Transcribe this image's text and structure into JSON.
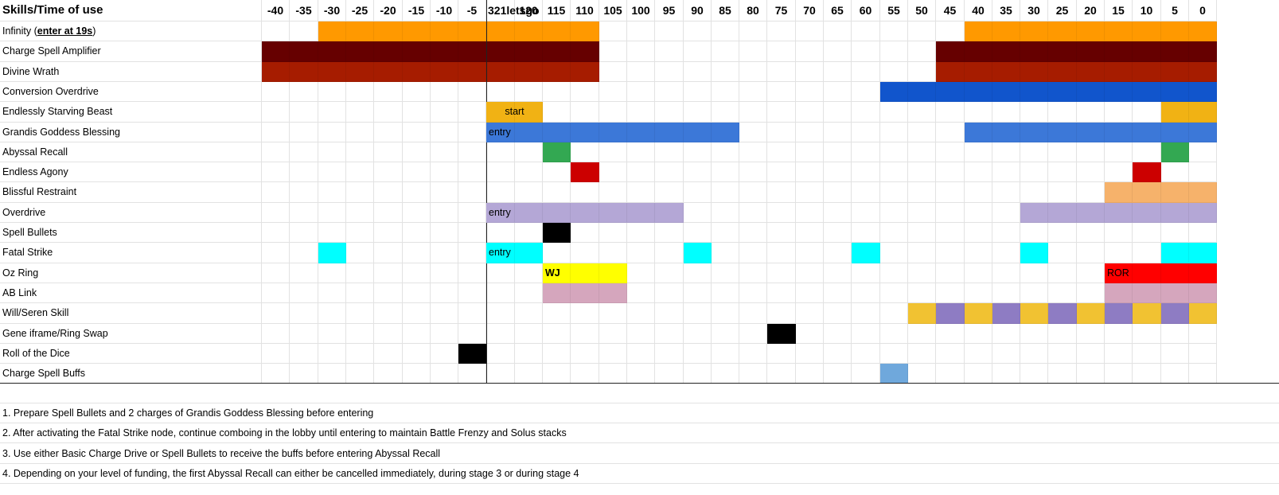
{
  "header": {
    "corner": "Skills/Time of use",
    "times": [
      "-40",
      "-35",
      "-30",
      "-25",
      "-20",
      "-15",
      "-10",
      "-5",
      "321letsgo",
      "120",
      "115",
      "110",
      "105",
      "100",
      "95",
      "90",
      "85",
      "80",
      "75",
      "70",
      "65",
      "60",
      "55",
      "50",
      "45",
      "40",
      "35",
      "30",
      "25",
      "20",
      "15",
      "10",
      "5",
      "0"
    ]
  },
  "colors": {
    "orange": "#ff9900",
    "darkred": "#660000",
    "brickred": "#a61c00",
    "blue": "#1155cc",
    "gold": "#f1b214",
    "cornflower": "#3c78d8",
    "green": "#33a852",
    "red": "#cc0000",
    "peach": "#f6b26b",
    "lavender": "#b4a7d6",
    "black": "#000000",
    "cyan": "#00ffff",
    "yellow": "#ffff00",
    "brightred": "#ff0000",
    "pink": "#d5a6bd",
    "mustard": "#f1c232",
    "purple": "#8e7cc3",
    "lightblue": "#6fa8dc"
  },
  "rows": [
    {
      "label": "Infinity (",
      "label_em": "enter at 19s",
      "label_tail": ")",
      "fills": [
        {
          "from": 2,
          "to": 11,
          "color": "orange"
        },
        {
          "from": 25,
          "to": 33,
          "color": "orange"
        }
      ]
    },
    {
      "label": "Charge Spell Amplifier",
      "fills": [
        {
          "from": 0,
          "to": 11,
          "color": "darkred"
        },
        {
          "from": 24,
          "to": 33,
          "color": "darkred"
        }
      ]
    },
    {
      "label": "Divine Wrath",
      "fills": [
        {
          "from": 0,
          "to": 11,
          "color": "brickred"
        },
        {
          "from": 24,
          "to": 33,
          "color": "brickred"
        }
      ]
    },
    {
      "label": "Conversion Overdrive",
      "fills": [
        {
          "from": 22,
          "to": 33,
          "color": "blue"
        }
      ]
    },
    {
      "label": "Endlessly Starving Beast",
      "fills": [
        {
          "from": 8,
          "to": 9,
          "color": "gold",
          "text": "start",
          "align": "center"
        },
        {
          "from": 32,
          "to": 33,
          "color": "gold"
        }
      ]
    },
    {
      "label": "Grandis Goddess Blessing",
      "fills": [
        {
          "from": 8,
          "to": 16,
          "color": "cornflower",
          "text": "entry"
        },
        {
          "from": 25,
          "to": 33,
          "color": "cornflower"
        }
      ]
    },
    {
      "label": "Abyssal Recall",
      "fills": [
        {
          "from": 10,
          "to": 10,
          "color": "green"
        },
        {
          "from": 32,
          "to": 32,
          "color": "green"
        }
      ]
    },
    {
      "label": "Endless Agony",
      "fills": [
        {
          "from": 11,
          "to": 11,
          "color": "red"
        },
        {
          "from": 31,
          "to": 31,
          "color": "red"
        }
      ]
    },
    {
      "label": "Blissful Restraint",
      "fills": [
        {
          "from": 30,
          "to": 33,
          "color": "peach"
        }
      ]
    },
    {
      "label": "Overdrive",
      "fills": [
        {
          "from": 8,
          "to": 14,
          "color": "lavender",
          "text": "entry"
        },
        {
          "from": 27,
          "to": 33,
          "color": "lavender"
        }
      ]
    },
    {
      "label": "Spell Bullets",
      "fills": [
        {
          "from": 10,
          "to": 10,
          "color": "black"
        }
      ]
    },
    {
      "label": "Fatal Strike",
      "fills": [
        {
          "from": 2,
          "to": 2,
          "color": "cyan"
        },
        {
          "from": 8,
          "to": 9,
          "color": "cyan",
          "text": "entry"
        },
        {
          "from": 15,
          "to": 15,
          "color": "cyan"
        },
        {
          "from": 21,
          "to": 21,
          "color": "cyan"
        },
        {
          "from": 27,
          "to": 27,
          "color": "cyan"
        },
        {
          "from": 32,
          "to": 33,
          "color": "cyan"
        }
      ]
    },
    {
      "label": "Oz Ring",
      "fills": [
        {
          "from": 10,
          "to": 12,
          "color": "yellow",
          "text": "WJ",
          "bold": true
        },
        {
          "from": 30,
          "to": 33,
          "color": "brightred",
          "text": "ROR"
        }
      ]
    },
    {
      "label": "AB Link",
      "fills": [
        {
          "from": 10,
          "to": 12,
          "color": "pink"
        },
        {
          "from": 30,
          "to": 33,
          "color": "pink"
        }
      ]
    },
    {
      "label": "Will/Seren Skill",
      "fills": [
        {
          "from": 23,
          "to": 23,
          "color": "mustard"
        },
        {
          "from": 24,
          "to": 24,
          "color": "purple"
        },
        {
          "from": 25,
          "to": 25,
          "color": "mustard"
        },
        {
          "from": 26,
          "to": 26,
          "color": "purple"
        },
        {
          "from": 27,
          "to": 27,
          "color": "mustard"
        },
        {
          "from": 28,
          "to": 28,
          "color": "purple"
        },
        {
          "from": 29,
          "to": 29,
          "color": "mustard"
        },
        {
          "from": 30,
          "to": 30,
          "color": "purple"
        },
        {
          "from": 31,
          "to": 31,
          "color": "mustard"
        },
        {
          "from": 32,
          "to": 32,
          "color": "purple"
        },
        {
          "from": 33,
          "to": 33,
          "color": "mustard"
        }
      ]
    },
    {
      "label": "Gene iframe/Ring Swap",
      "fills": [
        {
          "from": 18,
          "to": 18,
          "color": "black"
        }
      ]
    },
    {
      "label": "Roll of the Dice",
      "fills": [
        {
          "from": 7,
          "to": 7,
          "color": "black"
        }
      ]
    },
    {
      "label": "Charge Spell Buffs",
      "fills": [
        {
          "from": 22,
          "to": 22,
          "color": "lightblue"
        }
      ]
    }
  ],
  "notes": [
    "1. Prepare Spell Bullets and 2 charges of Grandis Goddess Blessing before entering",
    "2. After activating the Fatal Strike node, continue comboing in the lobby until entering to maintain Battle Frenzy and Solus stacks",
    "3. Use either Basic Charge Drive or Spell Bullets to receive the buffs before entering Abyssal Recall",
    "4. Depending on your level of funding, the first Abyssal Recall can either be cancelled immediately, during stage 3 or during stage 4"
  ]
}
